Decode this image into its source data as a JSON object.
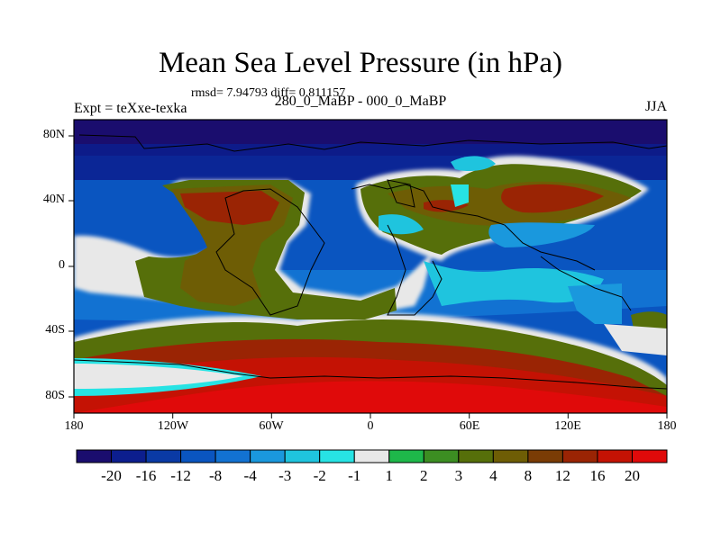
{
  "title": "Mean Sea Level Pressure (in hPa)",
  "stats": "rmsd= 7.94793 diff= 0.811157",
  "experiment": "Expt = teXxe-texka",
  "subtitle": "280_0_MaBP - 000_0_MaBP",
  "season": "JJA",
  "lat_ticks": [
    "80N",
    "40N",
    "0",
    "40S",
    "80S"
  ],
  "lon_ticks": [
    "180",
    "120W",
    "60W",
    "0",
    "60E",
    "120E",
    "180"
  ],
  "colorbar": {
    "colors": [
      "#1a0d6e",
      "#0c1e8e",
      "#0a3aa5",
      "#0a55c0",
      "#1272d2",
      "#1a98dd",
      "#1fc4de",
      "#27e3e4",
      "#e8e8e8",
      "#1eb84a",
      "#3c8e22",
      "#566f0a",
      "#6e5d05",
      "#7a3c05",
      "#9a2404",
      "#c41204",
      "#e00a0a"
    ],
    "labels": [
      "-20",
      "-16",
      "-12",
      "-8",
      "-4",
      "-3",
      "-2",
      "-1",
      "1",
      "2",
      "3",
      "4",
      "8",
      "12",
      "16",
      "20"
    ]
  }
}
